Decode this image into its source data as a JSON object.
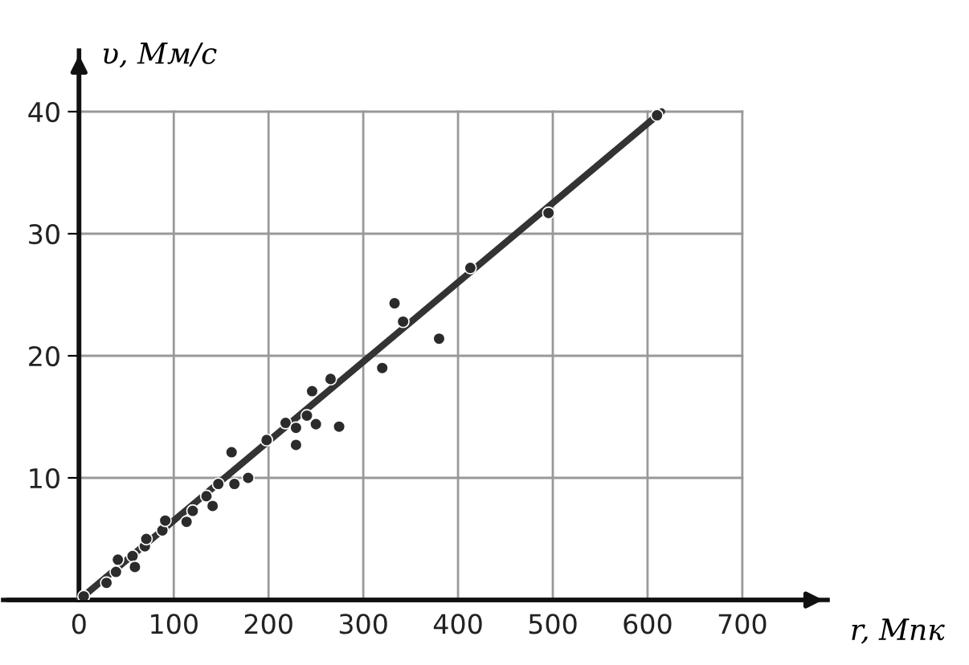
{
  "chart_data": {
    "type": "scatter",
    "xlabel": "r, Мпк",
    "ylabel": "υ, Мм/с",
    "xlim": [
      -80,
      790
    ],
    "ylim": [
      0,
      45
    ],
    "xticks": [
      0,
      100,
      200,
      300,
      400,
      500,
      600,
      700
    ],
    "yticks": [
      10,
      20,
      30,
      40
    ],
    "grid": true,
    "marker": "circle",
    "series": [
      {
        "color": "#2b2b2b",
        "x": [
          5,
          29,
          39,
          41,
          56.5,
          59,
          69.5,
          71,
          88,
          91,
          113.5,
          120,
          134.5,
          141,
          147,
          161,
          164,
          178.5,
          198,
          218,
          229,
          229,
          240.5,
          246,
          250,
          265.5,
          274.5,
          320,
          333,
          342,
          380,
          413,
          495.5,
          610
        ],
        "values": [
          0.3,
          1.4,
          2.3,
          3.3,
          3.6,
          2.7,
          4.4,
          5.0,
          5.7,
          6.5,
          6.4,
          7.3,
          8.5,
          7.7,
          9.5,
          12.1,
          9.5,
          10.0,
          13.1,
          14.5,
          14.1,
          12.7,
          15.1,
          17.1,
          14.4,
          18.1,
          14.2,
          19.0,
          24.3,
          22.8,
          21.4,
          27.2,
          31.7,
          39.7
        ]
      },
      {
        "type": "line",
        "marker": "none",
        "color": "#333333",
        "x": [
          0,
          615
        ],
        "values": [
          0,
          40
        ]
      }
    ]
  }
}
